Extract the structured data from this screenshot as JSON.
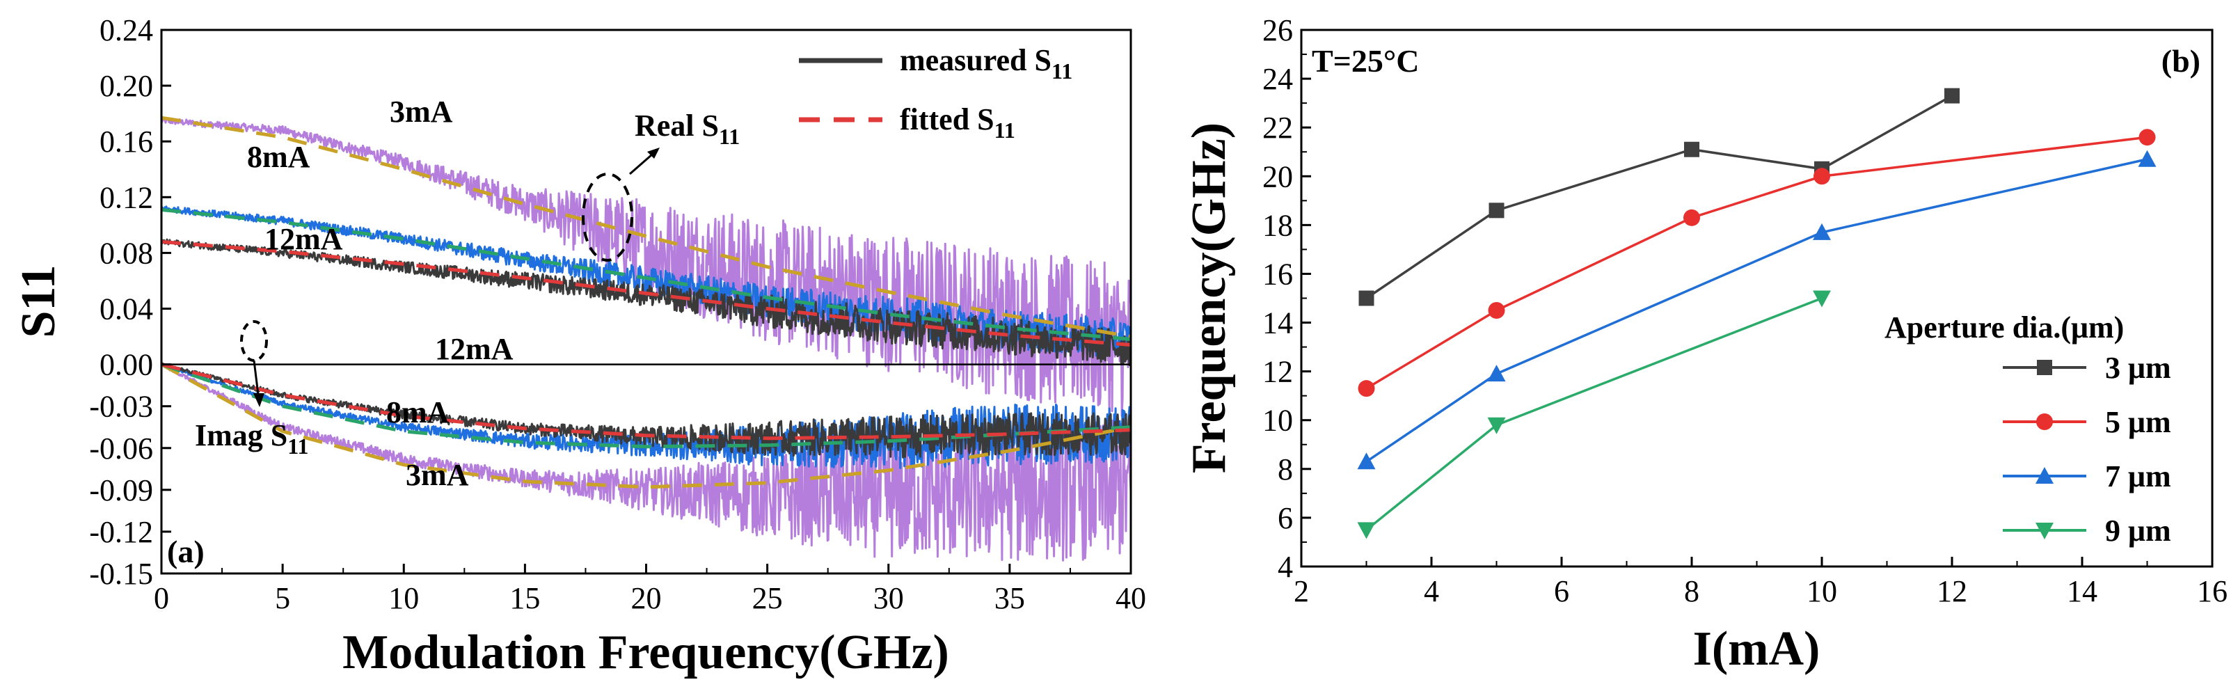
{
  "chart_data": [
    {
      "type": "line",
      "panel_label": "(a)",
      "xlabel": "Modulation Frequency(GHz)",
      "ylabel": "S11",
      "xlim": [
        0,
        40
      ],
      "ylim": [
        -0.15,
        0.24
      ],
      "x_ticks": [
        0,
        5,
        10,
        15,
        20,
        25,
        30,
        35,
        40
      ],
      "y_ticks": [
        0.24,
        0.2,
        0.16,
        0.12,
        0.08,
        0.04,
        0.0,
        -0.03,
        -0.06,
        -0.09,
        -0.12,
        -0.15
      ],
      "y_tick_labels": [
        "0.24",
        "0.20",
        "0.16",
        "0.12",
        "0.08",
        "0.04",
        "0.00",
        "-0.03",
        "-0.06",
        "-0.09",
        "-0.12",
        "-0.15"
      ],
      "zero_line": 0.0,
      "series": [
        {
          "name": "3mA Real measured",
          "part": "real",
          "current": "3mA",
          "kind": "measured",
          "color": "#b57edc",
          "x": [
            0,
            5,
            10,
            15,
            20,
            25,
            30,
            35,
            40
          ],
          "y": [
            0.175,
            0.168,
            0.145,
            0.115,
            0.085,
            0.06,
            0.045,
            0.03,
            0.015
          ],
          "noise": [
            0.002,
            0.003,
            0.005,
            0.012,
            0.035,
            0.045,
            0.05,
            0.055,
            0.055
          ]
        },
        {
          "name": "8mA Real measured",
          "part": "real",
          "current": "8mA",
          "kind": "measured",
          "color": "#1f6fe0",
          "x": [
            0,
            5,
            10,
            15,
            20,
            25,
            30,
            35,
            40
          ],
          "y": [
            0.112,
            0.103,
            0.09,
            0.075,
            0.06,
            0.045,
            0.035,
            0.025,
            0.018
          ],
          "noise": [
            0.002,
            0.003,
            0.004,
            0.006,
            0.01,
            0.012,
            0.014,
            0.014,
            0.014
          ]
        },
        {
          "name": "12mA Real measured",
          "part": "real",
          "current": "12mA",
          "kind": "measured",
          "color": "#3a3a3a",
          "x": [
            0,
            5,
            10,
            15,
            20,
            25,
            30,
            35,
            40
          ],
          "y": [
            0.088,
            0.08,
            0.07,
            0.06,
            0.05,
            0.038,
            0.028,
            0.02,
            0.012
          ],
          "noise": [
            0.002,
            0.003,
            0.004,
            0.006,
            0.008,
            0.012,
            0.013,
            0.013,
            0.013
          ]
        },
        {
          "name": "3mA Imag measured",
          "part": "imag",
          "current": "3mA",
          "kind": "measured",
          "color": "#b57edc",
          "x": [
            0,
            5,
            10,
            15,
            20,
            25,
            30,
            35,
            40
          ],
          "y": [
            0.0,
            -0.045,
            -0.068,
            -0.082,
            -0.09,
            -0.095,
            -0.095,
            -0.092,
            -0.09
          ],
          "noise": [
            0.001,
            0.003,
            0.004,
            0.006,
            0.015,
            0.03,
            0.045,
            0.05,
            0.05
          ]
        },
        {
          "name": "8mA Imag measured",
          "part": "imag",
          "current": "8mA",
          "kind": "measured",
          "color": "#1f6fe0",
          "x": [
            0,
            5,
            10,
            15,
            20,
            25,
            30,
            35,
            40
          ],
          "y": [
            0.0,
            -0.028,
            -0.045,
            -0.055,
            -0.058,
            -0.058,
            -0.055,
            -0.05,
            -0.05
          ],
          "noise": [
            0.001,
            0.002,
            0.003,
            0.005,
            0.008,
            0.015,
            0.02,
            0.022,
            0.02
          ]
        },
        {
          "name": "12mA Imag measured",
          "part": "imag",
          "current": "12mA",
          "kind": "measured",
          "color": "#3a3a3a",
          "x": [
            0,
            5,
            10,
            15,
            20,
            25,
            30,
            35,
            40
          ],
          "y": [
            0.0,
            -0.022,
            -0.036,
            -0.046,
            -0.052,
            -0.053,
            -0.052,
            -0.05,
            -0.05
          ],
          "noise": [
            0.001,
            0.002,
            0.003,
            0.004,
            0.007,
            0.012,
            0.015,
            0.015,
            0.015
          ]
        },
        {
          "name": "3mA Real fitted",
          "part": "real",
          "current": "3mA",
          "kind": "fitted",
          "color": "#c9a227",
          "x": [
            0,
            5,
            10,
            15,
            20,
            25,
            30,
            35,
            40
          ],
          "y": [
            0.177,
            0.163,
            0.14,
            0.115,
            0.092,
            0.07,
            0.052,
            0.035,
            0.02
          ]
        },
        {
          "name": "8mA Real fitted",
          "part": "real",
          "current": "8mA",
          "kind": "fitted",
          "color": "#2aa36b",
          "x": [
            0,
            5,
            10,
            15,
            20,
            25,
            30,
            35,
            40
          ],
          "y": [
            0.111,
            0.102,
            0.09,
            0.076,
            0.062,
            0.048,
            0.036,
            0.026,
            0.018
          ]
        },
        {
          "name": "12mA Real fitted",
          "part": "real",
          "current": "12mA",
          "kind": "fitted",
          "color": "#e03a3a",
          "x": [
            0,
            5,
            10,
            15,
            20,
            25,
            30,
            35,
            40
          ],
          "y": [
            0.088,
            0.081,
            0.072,
            0.062,
            0.051,
            0.04,
            0.03,
            0.021,
            0.014
          ]
        },
        {
          "name": "3mA Imag fitted",
          "part": "imag",
          "current": "3mA",
          "kind": "fitted",
          "color": "#c9a227",
          "x": [
            0,
            5,
            10,
            15,
            20,
            25,
            30,
            35,
            40
          ],
          "y": [
            0.0,
            -0.048,
            -0.072,
            -0.084,
            -0.088,
            -0.085,
            -0.076,
            -0.062,
            -0.045
          ]
        },
        {
          "name": "8mA Imag fitted",
          "part": "imag",
          "current": "8mA",
          "kind": "fitted",
          "color": "#2aa36b",
          "x": [
            0,
            5,
            10,
            15,
            20,
            25,
            30,
            35,
            40
          ],
          "y": [
            0.0,
            -0.03,
            -0.048,
            -0.056,
            -0.059,
            -0.058,
            -0.055,
            -0.05,
            -0.045
          ]
        },
        {
          "name": "12mA Imag fitted",
          "part": "imag",
          "current": "12mA",
          "kind": "fitted",
          "color": "#e03a3a",
          "x": [
            0,
            5,
            10,
            15,
            20,
            25,
            30,
            35,
            40
          ],
          "y": [
            0.0,
            -0.022,
            -0.037,
            -0.046,
            -0.051,
            -0.053,
            -0.052,
            -0.05,
            -0.047
          ]
        }
      ],
      "legend": [
        {
          "label": "measured S",
          "sub": "11",
          "style": "solid",
          "color": "#3a3a3a"
        },
        {
          "label": "fitted S",
          "sub": "11",
          "style": "dashed",
          "color": "#e03a3a"
        }
      ],
      "legend_position": "top-right",
      "annotations": [
        {
          "text": "3mA"
        },
        {
          "text": "8mA"
        },
        {
          "text": "12mA"
        },
        {
          "text": "12mA"
        },
        {
          "text": "8mA"
        },
        {
          "text": "3mA"
        },
        {
          "text": "Real S",
          "sub": "11"
        },
        {
          "text": "Imag S",
          "sub": "11"
        }
      ]
    },
    {
      "type": "line",
      "panel_label": "(b)",
      "xlabel": "I(mA)",
      "ylabel": "Frequency(GHz)",
      "xlim": [
        2,
        16
      ],
      "ylim": [
        4,
        26
      ],
      "x_ticks": [
        2,
        4,
        6,
        8,
        10,
        12,
        14,
        16
      ],
      "y_ticks": [
        4,
        6,
        8,
        10,
        12,
        14,
        16,
        18,
        20,
        22,
        24,
        26
      ],
      "annotation": "T=25°C",
      "legend_title": "Aperture dia.(μm)",
      "legend_position": "right",
      "series": [
        {
          "name": "3 μm",
          "color": "#404040",
          "marker": "square",
          "x": [
            3,
            5,
            8,
            10,
            12
          ],
          "y": [
            15.0,
            18.6,
            21.1,
            20.3,
            23.3
          ]
        },
        {
          "name": "5 μm",
          "color": "#e8312f",
          "marker": "circle",
          "x": [
            3,
            5,
            8,
            10,
            15
          ],
          "y": [
            11.3,
            14.5,
            18.3,
            20.0,
            21.6
          ]
        },
        {
          "name": "7 μm",
          "color": "#1f6fd6",
          "marker": "triangle-up",
          "x": [
            3,
            5,
            10,
            15
          ],
          "y": [
            8.3,
            11.9,
            17.7,
            20.7
          ]
        },
        {
          "name": "9 μm",
          "color": "#2bab6a",
          "marker": "triangle-down",
          "x": [
            3,
            5,
            10
          ],
          "y": [
            5.5,
            9.8,
            15.0
          ]
        }
      ]
    }
  ]
}
